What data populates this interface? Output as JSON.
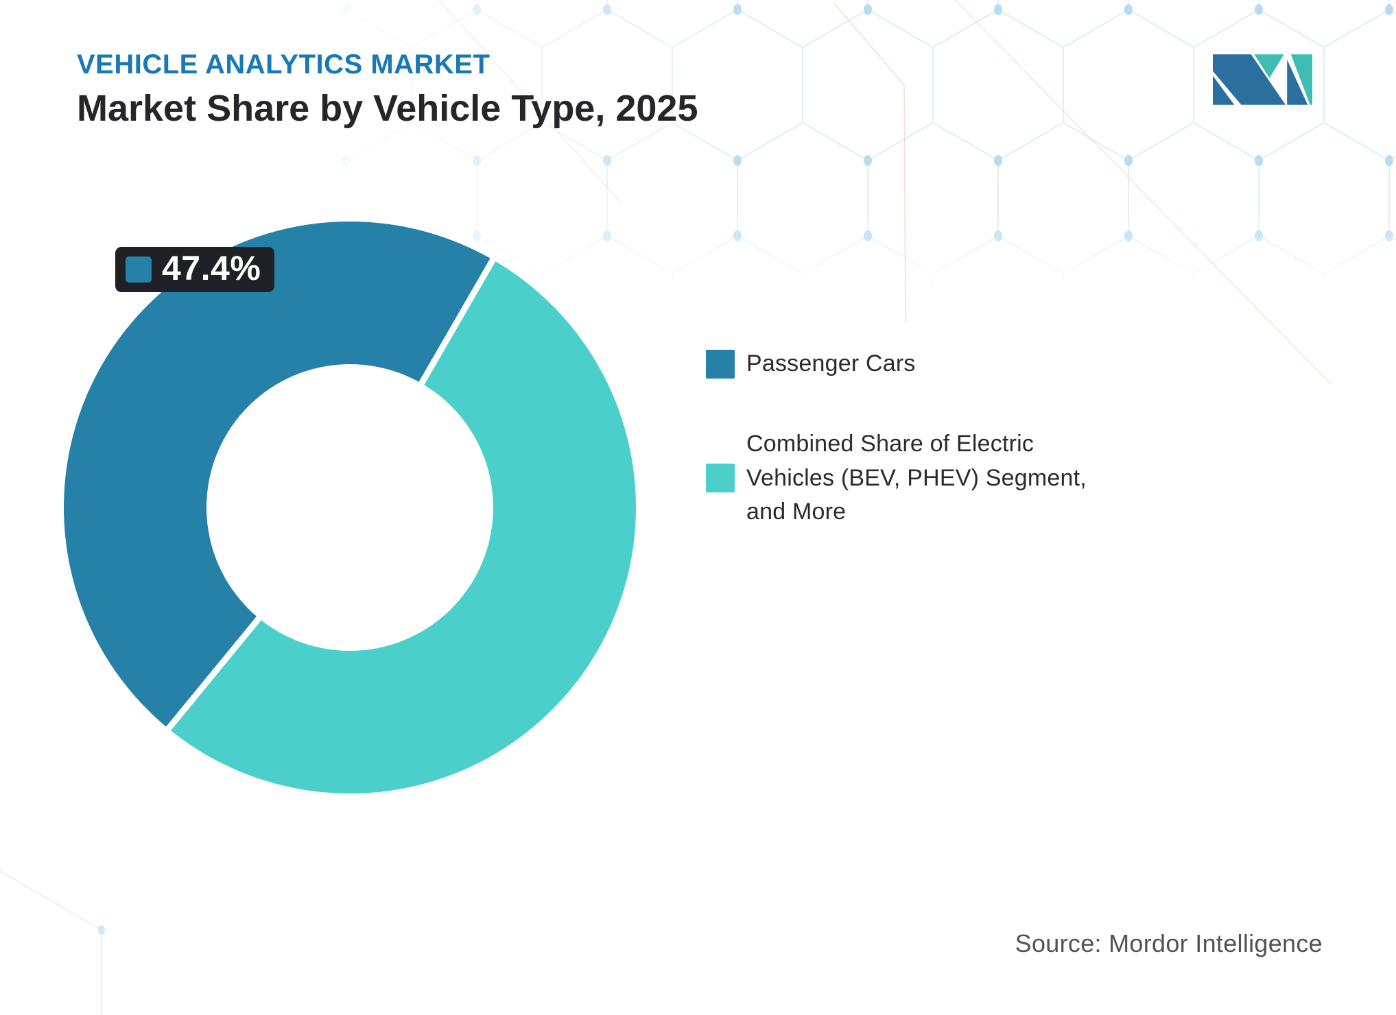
{
  "header": {
    "eyebrow": "VEHICLE ANALYTICS MARKET",
    "title": "Market Share by Vehicle Type, 2025"
  },
  "palette": {
    "primary_blue": "#2581a8",
    "teal": "#4bcfca",
    "eyebrow_blue": "#1878b8",
    "title_dark": "#26252b",
    "callout_bg": "#1f2126",
    "source_gray": "#525257",
    "pattern_line": "#d9eaf6",
    "pattern_dot": "#b7dcf2",
    "pattern_accent": "#f3bda9"
  },
  "chart_data": {
    "type": "pie",
    "subtype": "donut",
    "title": "Market Share by Vehicle Type, 2025",
    "unit": "%",
    "inner_radius_ratio": 0.5,
    "start_angle_deg": 30,
    "direction": "counterclockwise-from-start",
    "legend_position": "right",
    "segments": [
      {
        "label": "Passenger Cars",
        "value": 47.4,
        "color": "#2581a8"
      },
      {
        "label": "Combined Share of Electric Vehicles (BEV, PHEV) Segment, and More",
        "value": 52.6,
        "color": "#4bcfca"
      }
    ],
    "data_label": {
      "text": "47.4%",
      "segment": "Passenger Cars"
    }
  },
  "callout": {
    "value_label": "47.4%"
  },
  "legend": {
    "items": [
      {
        "label": "Passenger Cars",
        "color": "#2581a8"
      },
      {
        "label": "Combined Share of Electric\nVehicles (BEV, PHEV) Segment,\nand More",
        "color": "#4bcfca"
      }
    ]
  },
  "source": {
    "text": "Source: Mordor Intelligence"
  },
  "logo": {
    "alt": "Mordor Intelligence"
  }
}
